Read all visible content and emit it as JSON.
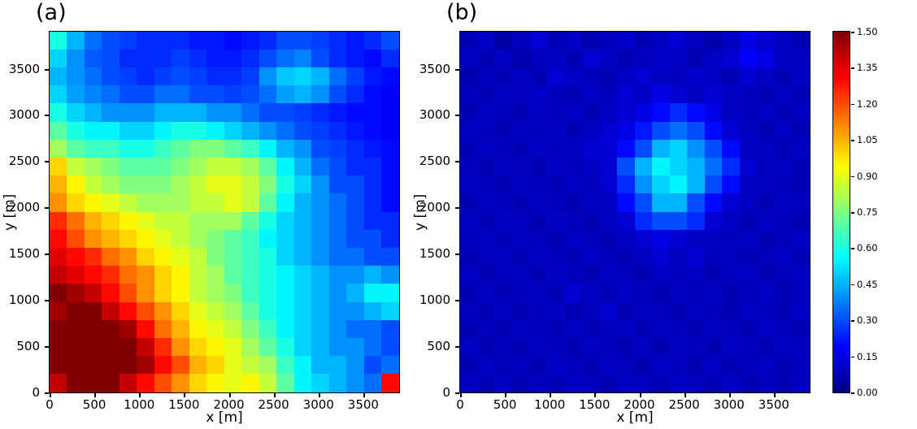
{
  "figure": {
    "background": "#ffffff",
    "panels": [
      {
        "label": "(a)",
        "xlabel": "x [m]",
        "ylabel": "y [m]"
      },
      {
        "label": "(b)",
        "xlabel": "x [m]",
        "ylabel": "y [m]"
      }
    ],
    "colorbar": {
      "colormap": "jet",
      "min": 0.0,
      "max": 1.5,
      "tick_labels": [
        "0.00",
        "0.15",
        "0.30",
        "0.45",
        "0.60",
        "0.75",
        "0.90",
        "1.05",
        "1.20",
        "1.35",
        "1.50"
      ]
    }
  },
  "chart_data": [
    {
      "type": "heatmap",
      "panel": "(a)",
      "xlabel": "x [m]",
      "ylabel": "y [m]",
      "x_range": [
        0,
        3900
      ],
      "y_range": [
        0,
        3900
      ],
      "x_ticks": [
        0,
        500,
        1000,
        1500,
        2000,
        2500,
        3000,
        3500
      ],
      "y_ticks": [
        0,
        500,
        1000,
        1500,
        2000,
        2500,
        3000,
        3500
      ],
      "colormap": "jet",
      "value_min": 0.0,
      "value_max": 1.5,
      "values_rows_top_to_bottom": [
        [
          0.6,
          0.45,
          0.35,
          0.3,
          0.28,
          0.25,
          0.25,
          0.25,
          0.22,
          0.22,
          0.2,
          0.22,
          0.25,
          0.3,
          0.3,
          0.28,
          0.25,
          0.22,
          0.25,
          0.3
        ],
        [
          0.5,
          0.4,
          0.32,
          0.3,
          0.25,
          0.25,
          0.25,
          0.28,
          0.25,
          0.22,
          0.22,
          0.25,
          0.3,
          0.35,
          0.38,
          0.3,
          0.25,
          0.22,
          0.2,
          0.25
        ],
        [
          0.45,
          0.4,
          0.35,
          0.3,
          0.28,
          0.25,
          0.28,
          0.3,
          0.28,
          0.25,
          0.25,
          0.28,
          0.4,
          0.48,
          0.5,
          0.45,
          0.35,
          0.28,
          0.22,
          0.2
        ],
        [
          0.5,
          0.42,
          0.38,
          0.35,
          0.3,
          0.3,
          0.35,
          0.35,
          0.3,
          0.3,
          0.28,
          0.3,
          0.35,
          0.42,
          0.45,
          0.4,
          0.3,
          0.25,
          0.2,
          0.18
        ],
        [
          0.6,
          0.5,
          0.45,
          0.4,
          0.4,
          0.4,
          0.45,
          0.45,
          0.45,
          0.4,
          0.4,
          0.35,
          0.3,
          0.3,
          0.28,
          0.25,
          0.22,
          0.2,
          0.2,
          0.18
        ],
        [
          0.7,
          0.6,
          0.55,
          0.55,
          0.5,
          0.5,
          0.55,
          0.6,
          0.6,
          0.55,
          0.5,
          0.45,
          0.4,
          0.35,
          0.3,
          0.28,
          0.25,
          0.22,
          0.2,
          0.18
        ],
        [
          0.8,
          0.7,
          0.65,
          0.65,
          0.6,
          0.6,
          0.65,
          0.7,
          0.75,
          0.75,
          0.7,
          0.65,
          0.55,
          0.45,
          0.4,
          0.3,
          0.28,
          0.25,
          0.22,
          0.2
        ],
        [
          1.0,
          0.85,
          0.8,
          0.75,
          0.7,
          0.7,
          0.7,
          0.75,
          0.8,
          0.85,
          0.85,
          0.8,
          0.7,
          0.55,
          0.45,
          0.35,
          0.3,
          0.25,
          0.25,
          0.2
        ],
        [
          1.05,
          0.95,
          0.85,
          0.8,
          0.75,
          0.75,
          0.75,
          0.8,
          0.85,
          0.9,
          0.9,
          0.85,
          0.75,
          0.6,
          0.5,
          0.4,
          0.3,
          0.3,
          0.25,
          0.2
        ],
        [
          1.1,
          1.0,
          0.95,
          0.9,
          0.85,
          0.8,
          0.8,
          0.8,
          0.85,
          0.85,
          0.9,
          0.85,
          0.7,
          0.55,
          0.45,
          0.4,
          0.35,
          0.3,
          0.25,
          0.2
        ],
        [
          1.25,
          1.15,
          1.05,
          1.0,
          0.95,
          0.9,
          0.85,
          0.85,
          0.8,
          0.8,
          0.8,
          0.7,
          0.6,
          0.5,
          0.45,
          0.4,
          0.35,
          0.3,
          0.25,
          0.25
        ],
        [
          1.3,
          1.2,
          1.1,
          1.05,
          1.0,
          0.95,
          0.9,
          0.85,
          0.8,
          0.75,
          0.7,
          0.65,
          0.55,
          0.5,
          0.45,
          0.4,
          0.35,
          0.3,
          0.3,
          0.25
        ],
        [
          1.35,
          1.3,
          1.25,
          1.15,
          1.1,
          1.0,
          0.95,
          0.9,
          0.85,
          0.75,
          0.7,
          0.65,
          0.6,
          0.5,
          0.45,
          0.4,
          0.35,
          0.35,
          0.3,
          0.3
        ],
        [
          1.4,
          1.35,
          1.3,
          1.25,
          1.15,
          1.1,
          1.0,
          0.95,
          0.85,
          0.8,
          0.7,
          0.65,
          0.6,
          0.55,
          0.5,
          0.45,
          0.4,
          0.4,
          0.45,
          0.4
        ],
        [
          1.5,
          1.45,
          1.4,
          1.3,
          1.2,
          1.1,
          1.0,
          0.95,
          0.85,
          0.8,
          0.75,
          0.65,
          0.6,
          0.55,
          0.5,
          0.45,
          0.4,
          0.45,
          0.55,
          0.55
        ],
        [
          1.45,
          1.5,
          1.5,
          1.4,
          1.3,
          1.2,
          1.1,
          1.0,
          0.9,
          0.85,
          0.8,
          0.7,
          0.6,
          0.55,
          0.5,
          0.45,
          0.4,
          0.4,
          0.45,
          0.5
        ],
        [
          1.5,
          1.5,
          1.5,
          1.5,
          1.45,
          1.3,
          1.15,
          1.05,
          0.95,
          0.9,
          0.85,
          0.75,
          0.65,
          0.55,
          0.5,
          0.45,
          0.4,
          0.35,
          0.35,
          0.3
        ],
        [
          1.5,
          1.5,
          1.5,
          1.5,
          1.5,
          1.4,
          1.25,
          1.1,
          1.0,
          0.95,
          0.9,
          0.8,
          0.7,
          0.6,
          0.5,
          0.45,
          0.4,
          0.4,
          0.35,
          0.3
        ],
        [
          1.5,
          1.5,
          1.5,
          1.5,
          1.5,
          1.45,
          1.3,
          1.2,
          1.05,
          1.0,
          0.9,
          0.85,
          0.8,
          0.65,
          0.55,
          0.45,
          0.45,
          0.4,
          0.3,
          0.35
        ],
        [
          1.4,
          1.5,
          1.5,
          1.5,
          1.4,
          1.3,
          1.2,
          1.1,
          1.0,
          0.95,
          0.9,
          0.95,
          0.85,
          0.7,
          0.55,
          0.5,
          0.45,
          0.4,
          0.35,
          1.3
        ]
      ]
    },
    {
      "type": "heatmap",
      "panel": "(b)",
      "xlabel": "x [m]",
      "ylabel": "y [m]",
      "x_range": [
        0,
        3900
      ],
      "y_range": [
        0,
        3900
      ],
      "x_ticks": [
        0,
        500,
        1000,
        1500,
        2000,
        2500,
        3000,
        3500
      ],
      "y_ticks": [
        0,
        500,
        1000,
        1500,
        2000,
        2500,
        3000,
        3500
      ],
      "colormap": "jet",
      "value_min": 0.0,
      "value_max": 1.5,
      "values_rows_top_to_bottom": [
        [
          0.08,
          0.1,
          0.06,
          0.09,
          0.12,
          0.08,
          0.1,
          0.07,
          0.09,
          0.11,
          0.08,
          0.1,
          0.12,
          0.09,
          0.07,
          0.1,
          0.15,
          0.12,
          0.1,
          0.08
        ],
        [
          0.1,
          0.08,
          0.1,
          0.07,
          0.09,
          0.1,
          0.08,
          0.12,
          0.1,
          0.08,
          0.09,
          0.11,
          0.1,
          0.08,
          0.1,
          0.12,
          0.18,
          0.15,
          0.1,
          0.09
        ],
        [
          0.07,
          0.09,
          0.08,
          0.1,
          0.08,
          0.12,
          0.1,
          0.09,
          0.08,
          0.1,
          0.12,
          0.1,
          0.09,
          0.11,
          0.1,
          0.08,
          0.12,
          0.1,
          0.08,
          0.1
        ],
        [
          0.09,
          0.08,
          0.1,
          0.09,
          0.11,
          0.09,
          0.08,
          0.1,
          0.09,
          0.12,
          0.1,
          0.15,
          0.12,
          0.1,
          0.12,
          0.1,
          0.09,
          0.08,
          0.1,
          0.08
        ],
        [
          0.08,
          0.1,
          0.09,
          0.08,
          0.1,
          0.09,
          0.1,
          0.08,
          0.1,
          0.12,
          0.15,
          0.2,
          0.25,
          0.2,
          0.15,
          0.1,
          0.09,
          0.1,
          0.08,
          0.09
        ],
        [
          0.1,
          0.09,
          0.08,
          0.1,
          0.09,
          0.1,
          0.08,
          0.1,
          0.12,
          0.15,
          0.22,
          0.3,
          0.35,
          0.3,
          0.2,
          0.12,
          0.1,
          0.08,
          0.1,
          0.08
        ],
        [
          0.08,
          0.1,
          0.09,
          0.08,
          0.1,
          0.09,
          0.1,
          0.12,
          0.12,
          0.2,
          0.3,
          0.45,
          0.5,
          0.4,
          0.3,
          0.2,
          0.1,
          0.1,
          0.08,
          0.1
        ],
        [
          0.09,
          0.08,
          0.1,
          0.09,
          0.08,
          0.1,
          0.09,
          0.1,
          0.12,
          0.3,
          0.45,
          0.55,
          0.5,
          0.45,
          0.35,
          0.25,
          0.12,
          0.09,
          0.1,
          0.08
        ],
        [
          0.1,
          0.09,
          0.08,
          0.1,
          0.09,
          0.08,
          0.1,
          0.09,
          0.12,
          0.25,
          0.4,
          0.5,
          0.55,
          0.45,
          0.3,
          0.2,
          0.1,
          0.1,
          0.09,
          0.08
        ],
        [
          0.08,
          0.1,
          0.09,
          0.08,
          0.1,
          0.09,
          0.08,
          0.1,
          0.1,
          0.2,
          0.3,
          0.45,
          0.45,
          0.3,
          0.2,
          0.12,
          0.1,
          0.08,
          0.1,
          0.09
        ],
        [
          0.1,
          0.08,
          0.1,
          0.09,
          0.08,
          0.1,
          0.09,
          0.08,
          0.1,
          0.12,
          0.25,
          0.3,
          0.3,
          0.25,
          0.12,
          0.1,
          0.08,
          0.1,
          0.09,
          0.08
        ],
        [
          0.09,
          0.1,
          0.08,
          0.1,
          0.09,
          0.08,
          0.1,
          0.09,
          0.08,
          0.1,
          0.12,
          0.15,
          0.12,
          0.1,
          0.1,
          0.09,
          0.1,
          0.08,
          0.09,
          0.1
        ],
        [
          0.08,
          0.09,
          0.1,
          0.08,
          0.1,
          0.09,
          0.08,
          0.1,
          0.09,
          0.08,
          0.1,
          0.12,
          0.1,
          0.12,
          0.09,
          0.1,
          0.08,
          0.09,
          0.1,
          0.08
        ],
        [
          0.1,
          0.08,
          0.09,
          0.1,
          0.08,
          0.1,
          0.09,
          0.08,
          0.1,
          0.09,
          0.08,
          0.1,
          0.09,
          0.1,
          0.08,
          0.09,
          0.1,
          0.08,
          0.09,
          0.1
        ],
        [
          0.08,
          0.1,
          0.08,
          0.09,
          0.1,
          0.08,
          0.12,
          0.1,
          0.08,
          0.1,
          0.09,
          0.08,
          0.1,
          0.09,
          0.1,
          0.08,
          0.09,
          0.1,
          0.08,
          0.09
        ],
        [
          0.09,
          0.08,
          0.1,
          0.08,
          0.09,
          0.1,
          0.08,
          0.09,
          0.12,
          0.08,
          0.1,
          0.09,
          0.08,
          0.1,
          0.09,
          0.08,
          0.1,
          0.09,
          0.08,
          0.1
        ],
        [
          0.08,
          0.09,
          0.08,
          0.1,
          0.09,
          0.08,
          0.1,
          0.08,
          0.09,
          0.1,
          0.08,
          0.1,
          0.09,
          0.08,
          0.1,
          0.09,
          0.08,
          0.1,
          0.09,
          0.08
        ],
        [
          0.1,
          0.08,
          0.09,
          0.08,
          0.1,
          0.09,
          0.08,
          0.1,
          0.09,
          0.08,
          0.1,
          0.08,
          0.1,
          0.09,
          0.08,
          0.1,
          0.09,
          0.08,
          0.1,
          0.09
        ],
        [
          0.08,
          0.1,
          0.08,
          0.09,
          0.08,
          0.1,
          0.09,
          0.08,
          0.1,
          0.09,
          0.08,
          0.1,
          0.09,
          0.08,
          0.1,
          0.08,
          0.09,
          0.1,
          0.08,
          0.09
        ],
        [
          0.09,
          0.08,
          0.1,
          0.08,
          0.09,
          0.08,
          0.1,
          0.09,
          0.08,
          0.1,
          0.09,
          0.08,
          0.1,
          0.09,
          0.08,
          0.1,
          0.08,
          0.09,
          0.08,
          0.1
        ]
      ]
    }
  ]
}
